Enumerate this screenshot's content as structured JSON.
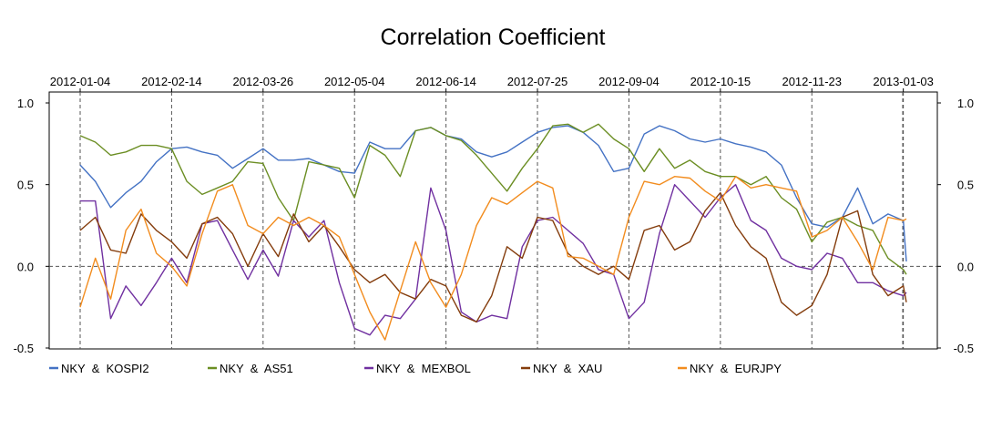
{
  "chart_data": {
    "type": "line",
    "title": "Correlation Coefficient",
    "xlabel": "",
    "ylabel": "",
    "x_tick_labels": [
      "2012-01-04",
      "2012-02-14",
      "2012-03-26",
      "2012-05-04",
      "2012-06-14",
      "2012-07-25",
      "2012-09-04",
      "2012-10-15",
      "2012-11-23",
      "2013-01-03"
    ],
    "y_tick_labels": [
      "1.0",
      "0.5",
      "0.0",
      "-0.5"
    ],
    "ylim": [
      -0.5,
      1.0
    ],
    "xlim": [
      0,
      271
    ],
    "x_vlines": [
      0,
      30,
      60,
      90,
      120,
      150,
      180,
      210,
      240,
      270
    ],
    "legend_position": "bottom",
    "grid": "dashed vertical lines at x ticks, dashed horizontal line at 0",
    "series": [
      {
        "name": "NKY  &  KOSPI2",
        "color": "#4472C4",
        "x": [
          0,
          5,
          10,
          15,
          20,
          25,
          30,
          35,
          40,
          45,
          50,
          55,
          60,
          65,
          70,
          75,
          80,
          85,
          90,
          95,
          100,
          105,
          110,
          115,
          120,
          125,
          130,
          135,
          140,
          145,
          150,
          155,
          160,
          165,
          170,
          175,
          180,
          185,
          190,
          195,
          200,
          205,
          210,
          215,
          220,
          225,
          230,
          235,
          240,
          245,
          250,
          255,
          260,
          265,
          270,
          271
        ],
        "values": [
          0.62,
          0.52,
          0.36,
          0.45,
          0.52,
          0.64,
          0.72,
          0.73,
          0.7,
          0.68,
          0.6,
          0.66,
          0.72,
          0.65,
          0.65,
          0.66,
          0.62,
          0.58,
          0.57,
          0.76,
          0.72,
          0.72,
          0.83,
          0.85,
          0.8,
          0.78,
          0.7,
          0.67,
          0.7,
          0.76,
          0.82,
          0.85,
          0.86,
          0.82,
          0.74,
          0.58,
          0.6,
          0.81,
          0.86,
          0.83,
          0.78,
          0.76,
          0.78,
          0.75,
          0.73,
          0.7,
          0.62,
          0.42,
          0.26,
          0.24,
          0.3,
          0.48,
          0.26,
          0.32,
          0.28,
          0.03
        ]
      },
      {
        "name": "NKY  &  AS51",
        "color": "#6B8E23",
        "x": [
          0,
          5,
          10,
          15,
          20,
          25,
          30,
          35,
          40,
          45,
          50,
          55,
          60,
          65,
          70,
          75,
          80,
          85,
          90,
          95,
          100,
          105,
          110,
          115,
          120,
          125,
          130,
          135,
          140,
          145,
          150,
          155,
          160,
          165,
          170,
          175,
          180,
          185,
          190,
          195,
          200,
          205,
          210,
          215,
          220,
          225,
          230,
          235,
          240,
          245,
          250,
          255,
          260,
          265,
          270,
          271
        ],
        "values": [
          0.8,
          0.76,
          0.68,
          0.7,
          0.74,
          0.74,
          0.72,
          0.52,
          0.44,
          0.48,
          0.52,
          0.64,
          0.63,
          0.42,
          0.28,
          0.64,
          0.62,
          0.6,
          0.42,
          0.74,
          0.68,
          0.55,
          0.83,
          0.85,
          0.8,
          0.77,
          0.68,
          0.57,
          0.46,
          0.6,
          0.72,
          0.86,
          0.87,
          0.82,
          0.87,
          0.78,
          0.72,
          0.58,
          0.72,
          0.6,
          0.65,
          0.58,
          0.55,
          0.55,
          0.5,
          0.55,
          0.42,
          0.35,
          0.15,
          0.27,
          0.3,
          0.25,
          0.22,
          0.05,
          -0.02,
          -0.05
        ]
      },
      {
        "name": "NKY  &  MEXBOL",
        "color": "#7030A0",
        "x": [
          0,
          5,
          10,
          15,
          20,
          25,
          30,
          35,
          40,
          45,
          50,
          55,
          60,
          65,
          70,
          75,
          80,
          85,
          90,
          95,
          100,
          105,
          110,
          115,
          120,
          125,
          130,
          135,
          140,
          145,
          150,
          155,
          160,
          165,
          170,
          175,
          180,
          185,
          190,
          195,
          200,
          205,
          210,
          215,
          220,
          225,
          230,
          235,
          240,
          245,
          250,
          255,
          260,
          265,
          270,
          271
        ],
        "values": [
          0.4,
          0.4,
          -0.32,
          -0.12,
          -0.24,
          -0.1,
          0.05,
          -0.1,
          0.26,
          0.28,
          0.1,
          -0.08,
          0.1,
          -0.06,
          0.28,
          0.18,
          0.28,
          -0.1,
          -0.38,
          -0.42,
          -0.3,
          -0.32,
          -0.2,
          0.48,
          0.22,
          -0.28,
          -0.34,
          -0.3,
          -0.32,
          0.12,
          0.28,
          0.3,
          0.22,
          0.14,
          -0.02,
          -0.05,
          -0.32,
          -0.22,
          0.2,
          0.5,
          0.4,
          0.3,
          0.42,
          0.5,
          0.28,
          0.22,
          0.05,
          0.0,
          -0.02,
          0.08,
          0.05,
          -0.1,
          -0.1,
          -0.15,
          -0.18,
          -0.16
        ]
      },
      {
        "name": "NKY  &  XAU",
        "color": "#843C0C",
        "x": [
          0,
          5,
          10,
          15,
          20,
          25,
          30,
          35,
          40,
          45,
          50,
          55,
          60,
          65,
          70,
          75,
          80,
          85,
          90,
          95,
          100,
          105,
          110,
          115,
          120,
          125,
          130,
          135,
          140,
          145,
          150,
          155,
          160,
          165,
          170,
          175,
          180,
          185,
          190,
          195,
          200,
          205,
          210,
          215,
          220,
          225,
          230,
          235,
          240,
          245,
          250,
          255,
          260,
          265,
          270,
          271
        ],
        "values": [
          0.22,
          0.3,
          0.1,
          0.08,
          0.32,
          0.22,
          0.15,
          0.05,
          0.26,
          0.3,
          0.2,
          0.0,
          0.2,
          0.06,
          0.32,
          0.15,
          0.25,
          0.12,
          -0.02,
          -0.1,
          -0.05,
          -0.16,
          -0.2,
          -0.08,
          -0.12,
          -0.3,
          -0.34,
          -0.18,
          0.12,
          0.05,
          0.3,
          0.28,
          0.08,
          0.0,
          -0.05,
          0.0,
          -0.08,
          0.22,
          0.25,
          0.1,
          0.15,
          0.34,
          0.45,
          0.25,
          0.12,
          0.05,
          -0.22,
          -0.3,
          -0.24,
          -0.05,
          0.3,
          0.34,
          -0.05,
          -0.18,
          -0.12,
          -0.22
        ]
      },
      {
        "name": "NKY  &  EURJPY",
        "color": "#F28C1E",
        "x": [
          0,
          5,
          10,
          15,
          20,
          25,
          30,
          35,
          40,
          45,
          50,
          55,
          60,
          65,
          70,
          75,
          80,
          85,
          90,
          95,
          100,
          105,
          110,
          115,
          120,
          125,
          130,
          135,
          140,
          145,
          150,
          155,
          160,
          165,
          170,
          175,
          180,
          185,
          190,
          195,
          200,
          205,
          210,
          215,
          220,
          225,
          230,
          235,
          240,
          245,
          250,
          255,
          260,
          265,
          270,
          271
        ],
        "values": [
          -0.25,
          0.05,
          -0.2,
          0.22,
          0.35,
          0.08,
          0.0,
          -0.12,
          0.2,
          0.46,
          0.5,
          0.25,
          0.2,
          0.3,
          0.25,
          0.3,
          0.25,
          0.18,
          -0.05,
          -0.28,
          -0.45,
          -0.15,
          0.15,
          -0.1,
          -0.25,
          -0.05,
          0.25,
          0.42,
          0.38,
          0.45,
          0.52,
          0.48,
          0.06,
          0.05,
          0.0,
          -0.05,
          0.3,
          0.52,
          0.5,
          0.55,
          0.54,
          0.46,
          0.4,
          0.55,
          0.48,
          0.5,
          0.48,
          0.46,
          0.18,
          0.22,
          0.3,
          0.15,
          -0.02,
          0.3,
          0.28,
          0.29
        ]
      }
    ]
  },
  "legend": {
    "items": [
      {
        "label": "NKY  &  KOSPI2",
        "color": "#4472C4"
      },
      {
        "label": "NKY  &  AS51",
        "color": "#6B8E23"
      },
      {
        "label": "NKY  &  MEXBOL",
        "color": "#7030A0"
      },
      {
        "label": "NKY  &  XAU",
        "color": "#843C0C"
      },
      {
        "label": "NKY  &  EURJPY",
        "color": "#F28C1E"
      }
    ]
  }
}
